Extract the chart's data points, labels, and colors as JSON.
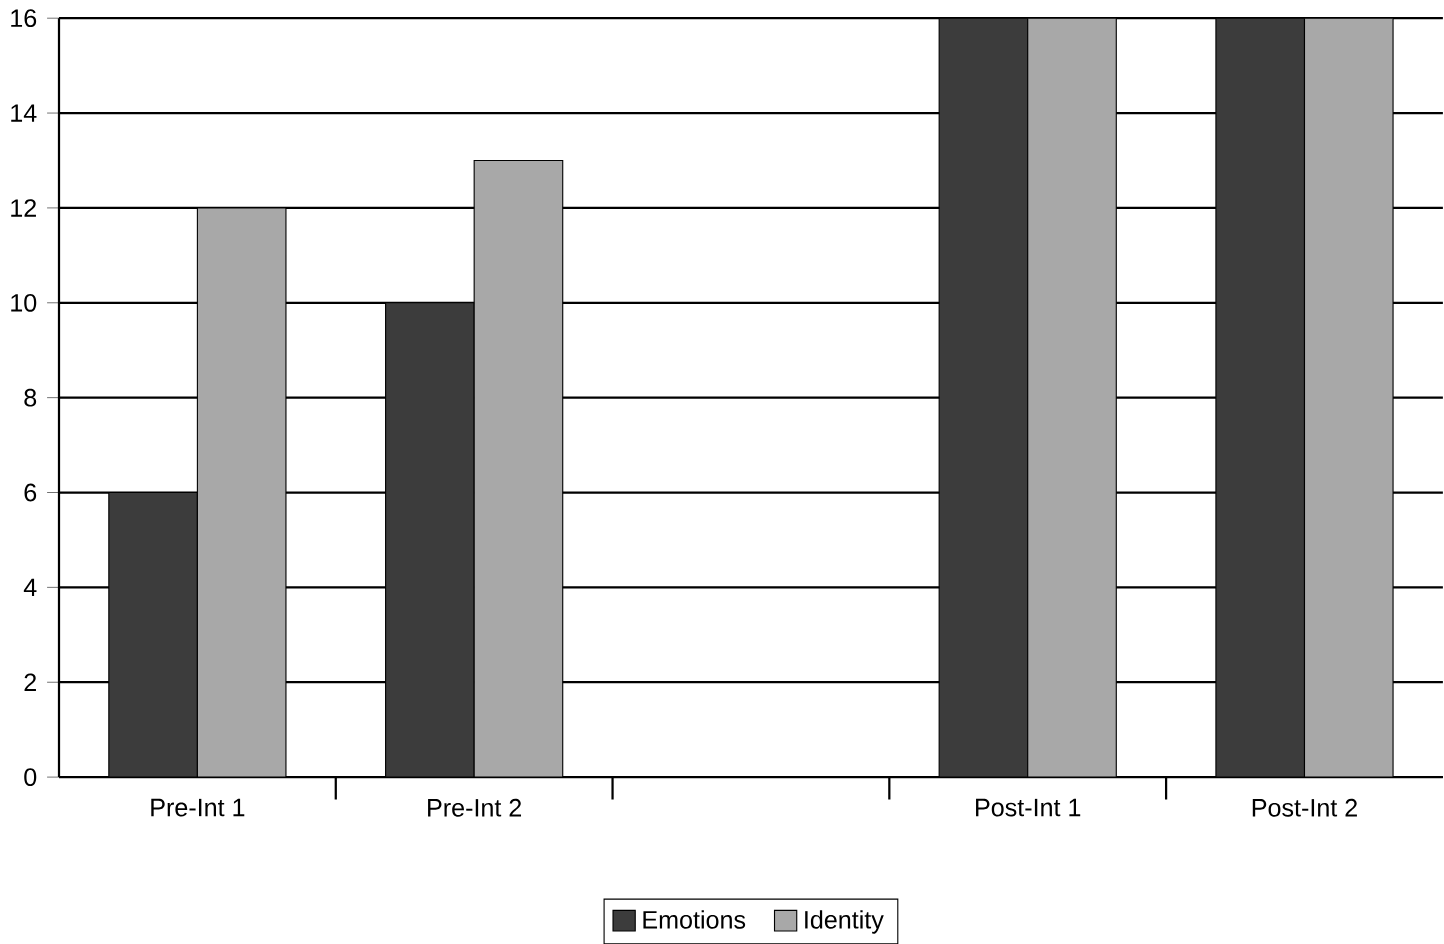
{
  "chart_data": {
    "type": "bar",
    "categories": [
      "Pre-Int  1",
      "Pre-Int  2",
      null,
      "Post-Int  1",
      "Post-Int  2"
    ],
    "series": [
      {
        "name": "Emotions",
        "color": "#3c3c3c",
        "values": [
          6,
          10,
          null,
          16,
          16
        ]
      },
      {
        "name": "Identity",
        "color": "#a8a8a8",
        "values": [
          12,
          13,
          null,
          16,
          16
        ]
      }
    ],
    "ylim": [
      0,
      16
    ],
    "yticks": [
      0,
      2,
      4,
      6,
      8,
      10,
      12,
      14,
      16
    ],
    "grid": "y",
    "legend": "bottom"
  }
}
